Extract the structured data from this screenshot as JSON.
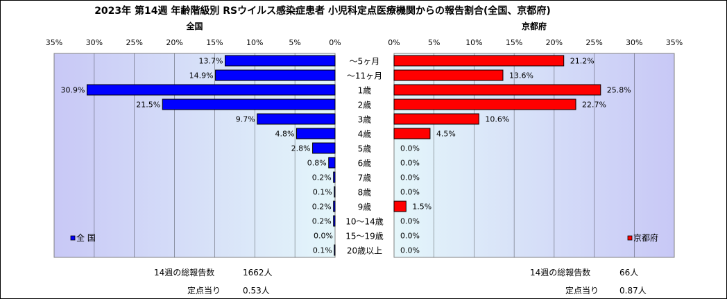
{
  "title": "2023年 第14週 年齢階級別 RSウイルス感染症患者 小児科定点医療機関からの報告割合(全国、京都府)",
  "chart_data": {
    "type": "bar",
    "orientation": "horizontal-back-to-back",
    "categories": [
      "～5ヶ月",
      "～11ヶ月",
      "1歳",
      "2歳",
      "3歳",
      "4歳",
      "5歳",
      "6歳",
      "7歳",
      "8歳",
      "9歳",
      "10～14歳",
      "15～19歳",
      "20歳以上"
    ],
    "xlim": [
      0,
      35
    ],
    "ticks": [
      "0%",
      "5%",
      "10%",
      "15%",
      "20%",
      "25%",
      "30%",
      "35%"
    ],
    "grid": true,
    "series": [
      {
        "name": "全国",
        "legend": "全 国",
        "color": "#0000ff",
        "values": [
          13.7,
          14.9,
          30.9,
          21.5,
          9.7,
          4.8,
          2.8,
          0.8,
          0.2,
          0.1,
          0.2,
          0.2,
          0.0,
          0.1
        ],
        "labels": [
          "13.7%",
          "14.9%",
          "30.9%",
          "21.5%",
          "9.7%",
          "4.8%",
          "2.8%",
          "0.8%",
          "0.2%",
          "0.1%",
          "0.2%",
          "0.2%",
          "0.0%",
          "0.1%"
        ]
      },
      {
        "name": "京都府",
        "legend": "京都府",
        "color": "#ff0000",
        "values": [
          21.2,
          13.6,
          25.8,
          22.7,
          10.6,
          4.5,
          0.0,
          0.0,
          0.0,
          0.0,
          1.5,
          0.0,
          0.0,
          0.0
        ],
        "labels": [
          "21.2%",
          "13.6%",
          "25.8%",
          "22.7%",
          "10.6%",
          "4.5%",
          "0.0%",
          "0.0%",
          "0.0%",
          "0.0%",
          "1.5%",
          "0.0%",
          "0.0%",
          "0.0%"
        ]
      }
    ]
  },
  "notes": {
    "national": {
      "total_label": "14週の総報告数",
      "total_value": "1662人",
      "per_label": "定点当り",
      "per_value": "0.53人"
    },
    "kyoto": {
      "total_label": "14週の総報告数",
      "total_value": "66人",
      "per_label": "定点当り",
      "per_value": "0.87人"
    }
  }
}
